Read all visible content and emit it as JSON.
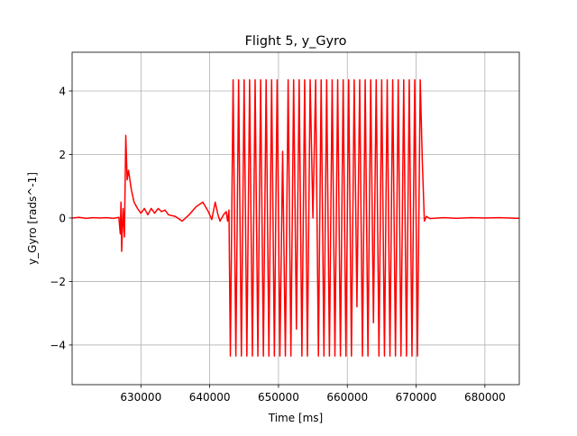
{
  "chart_data": {
    "type": "line",
    "title": "Flight 5, y_Gyro",
    "x_label": "Time [ms]",
    "y_label": "y_Gyro [rads^-1]",
    "x": [
      620000,
      621000,
      622000,
      623000,
      624000,
      625000,
      626000,
      626800,
      627000,
      627100,
      627200,
      627400,
      627600,
      627800,
      628000,
      628200,
      628600,
      629000,
      629500,
      630000,
      630500,
      631000,
      631500,
      632000,
      632500,
      633000,
      633500,
      634000,
      635000,
      636000,
      637000,
      638000,
      639000,
      639800,
      640300,
      640800,
      641200,
      641500,
      642000,
      642400,
      642600,
      642800,
      643000,
      643400,
      643800,
      644200,
      644600,
      645000,
      645400,
      645800,
      646200,
      646600,
      647000,
      647400,
      647800,
      648200,
      648600,
      649000,
      649400,
      649800,
      650200,
      650600,
      651000,
      651400,
      651800,
      652200,
      652600,
      653000,
      653400,
      653800,
      654200,
      654600,
      655000,
      655400,
      655800,
      656200,
      656600,
      657000,
      657400,
      657800,
      658200,
      658600,
      659000,
      659400,
      659800,
      660200,
      660600,
      661000,
      661400,
      661800,
      662200,
      662600,
      663000,
      663400,
      663800,
      664200,
      664600,
      665000,
      665400,
      665800,
      666200,
      666600,
      667000,
      667400,
      667800,
      668200,
      668600,
      669000,
      669400,
      669800,
      670200,
      670600,
      670900,
      671200,
      671500,
      672000,
      674000,
      676000,
      678000,
      680000,
      682000,
      685000
    ],
    "series": [
      {
        "color": "#ff0000",
        "values": [
          0,
          0.02,
          -0.01,
          0.01,
          0,
          0.01,
          -0.01,
          0.02,
          -0.5,
          0.5,
          -1.05,
          0.3,
          -0.6,
          2.6,
          1.2,
          1.5,
          0.9,
          0.5,
          0.3,
          0.15,
          0.3,
          0.1,
          0.3,
          0.15,
          0.3,
          0.2,
          0.25,
          0.1,
          0.05,
          -0.1,
          0.1,
          0.35,
          0.5,
          0.2,
          -0.05,
          0.5,
          0.1,
          -0.1,
          0.1,
          0.2,
          -0.1,
          0.25,
          -4.35,
          4.35,
          -4.35,
          4.35,
          -4.35,
          4.35,
          -4.35,
          4.35,
          -4.35,
          4.35,
          -4.35,
          4.35,
          -4.35,
          4.35,
          -4.35,
          4.35,
          -4.35,
          4.35,
          -4.35,
          2.1,
          -4.35,
          4.35,
          -4.35,
          4.35,
          -3.5,
          4.35,
          -4.35,
          4.35,
          -4.35,
          4.35,
          0.0,
          4.35,
          -4.35,
          4.35,
          -4.35,
          4.35,
          -4.35,
          4.35,
          -4.35,
          4.35,
          -4.35,
          4.35,
          -4.35,
          4.35,
          -4.35,
          4.35,
          -2.8,
          4.35,
          -4.35,
          4.35,
          -4.35,
          4.35,
          -3.3,
          4.35,
          -4.35,
          4.35,
          -4.35,
          4.35,
          -4.35,
          4.35,
          -4.35,
          4.35,
          -4.35,
          4.35,
          -4.35,
          4.35,
          -4.35,
          4.35,
          -4.35,
          4.35,
          1.8,
          -0.1,
          0.05,
          -0.02,
          0.01,
          -0.01,
          0.01,
          0,
          0.01,
          -0.01
        ]
      }
    ],
    "xlim": [
      620000,
      685000
    ],
    "ylim": [
      -5.25,
      5.22
    ],
    "xticks": [
      630000,
      640000,
      650000,
      660000,
      670000,
      680000
    ],
    "yticks": [
      {
        "value": -4,
        "label": "−4"
      },
      {
        "value": -2,
        "label": "−2"
      },
      0,
      2,
      4
    ],
    "grid": true
  }
}
